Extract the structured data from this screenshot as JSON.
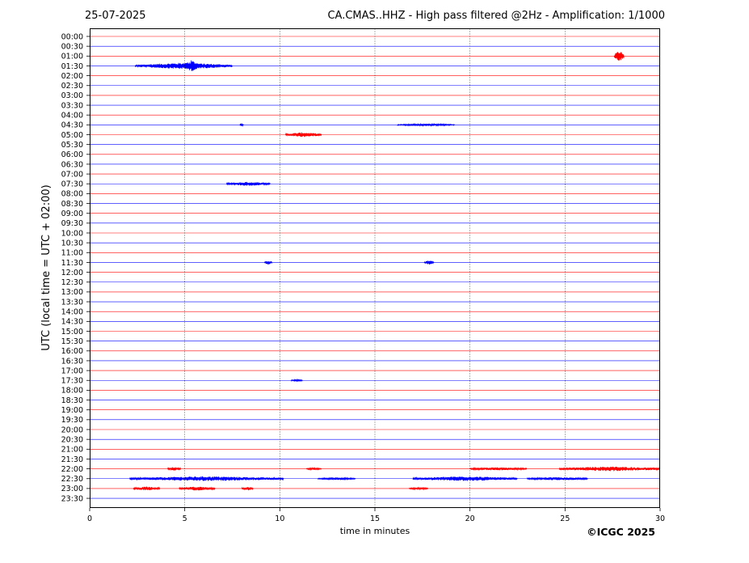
{
  "header": {
    "date": "25-07-2025",
    "title": "CA.CMAS..HHZ - High pass filtered @2Hz - Amplification: 1/1000"
  },
  "footer": {
    "copyright": "©ICGC 2025"
  },
  "colors": {
    "red_trace": "#ff0000",
    "blue_trace": "#0000ff",
    "grid": "#000000",
    "frame": "#000000"
  },
  "chart_data": {
    "type": "line",
    "title": "CA.CMAS..HHZ - High pass filtered @2Hz - Amplification: 1/1000",
    "xlabel": "time in minutes",
    "ylabel": "UTC (local time = UTC + 02:00)",
    "xlim": [
      0,
      30
    ],
    "xticks": [
      0,
      5,
      10,
      15,
      20,
      25,
      30
    ],
    "grid": "vertical dotted lines at 5-minute intervals",
    "line_colors": "alternating red / blue per 30-minute row",
    "rows": [
      "00:00",
      "00:30",
      "01:00",
      "01:30",
      "02:00",
      "02:30",
      "03:00",
      "03:30",
      "04:00",
      "04:30",
      "05:00",
      "05:30",
      "06:00",
      "06:30",
      "07:00",
      "07:30",
      "08:00",
      "08:30",
      "09:00",
      "09:30",
      "10:00",
      "10:30",
      "11:00",
      "11:30",
      "12:00",
      "12:30",
      "13:00",
      "13:30",
      "14:00",
      "14:30",
      "15:00",
      "15:30",
      "16:00",
      "16:30",
      "17:00",
      "17:30",
      "18:00",
      "18:30",
      "19:00",
      "19:30",
      "20:00",
      "20:30",
      "21:00",
      "21:30",
      "22:00",
      "22:30",
      "23:00",
      "23:30"
    ],
    "events": [
      {
        "row": "01:00",
        "start": 27.6,
        "end": 28.1,
        "amp": 7
      },
      {
        "row": "01:30",
        "start": 2.4,
        "end": 7.5,
        "amp": 4
      },
      {
        "row": "01:30",
        "start": 4.9,
        "end": 5.8,
        "amp": 7
      },
      {
        "row": "04:30",
        "start": 7.9,
        "end": 8.1,
        "amp": 2
      },
      {
        "row": "04:30",
        "start": 16.2,
        "end": 19.2,
        "amp": 1.5
      },
      {
        "row": "05:00",
        "start": 10.3,
        "end": 12.2,
        "amp": 3
      },
      {
        "row": "07:30",
        "start": 7.2,
        "end": 9.5,
        "amp": 2.5
      },
      {
        "row": "11:30",
        "start": 9.2,
        "end": 9.6,
        "amp": 3
      },
      {
        "row": "11:30",
        "start": 17.6,
        "end": 18.1,
        "amp": 3
      },
      {
        "row": "17:30",
        "start": 10.6,
        "end": 11.2,
        "amp": 1.5
      },
      {
        "row": "22:00",
        "start": 4.1,
        "end": 4.8,
        "amp": 2.5
      },
      {
        "row": "22:00",
        "start": 11.4,
        "end": 12.2,
        "amp": 1.5
      },
      {
        "row": "22:00",
        "start": 20.0,
        "end": 23.0,
        "amp": 2
      },
      {
        "row": "22:00",
        "start": 24.7,
        "end": 30.0,
        "amp": 3
      },
      {
        "row": "22:30",
        "start": 2.1,
        "end": 10.2,
        "amp": 3
      },
      {
        "row": "22:30",
        "start": 12.0,
        "end": 14.0,
        "amp": 1.5
      },
      {
        "row": "22:30",
        "start": 17.0,
        "end": 22.5,
        "amp": 3
      },
      {
        "row": "22:30",
        "start": 23.0,
        "end": 26.2,
        "amp": 2
      },
      {
        "row": "23:00",
        "start": 2.3,
        "end": 3.7,
        "amp": 2.5
      },
      {
        "row": "23:00",
        "start": 4.7,
        "end": 6.6,
        "amp": 2.5
      },
      {
        "row": "23:00",
        "start": 8.0,
        "end": 8.6,
        "amp": 2.5
      },
      {
        "row": "23:00",
        "start": 16.8,
        "end": 17.8,
        "amp": 1.5
      }
    ]
  }
}
